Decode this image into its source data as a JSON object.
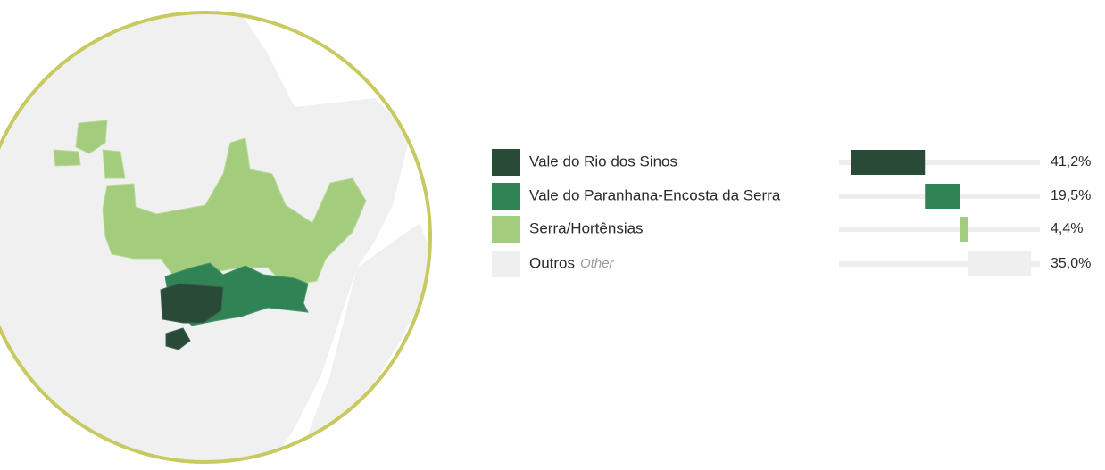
{
  "chart_data": {
    "type": "bar",
    "categories": [
      "Vale do Rio dos Sinos",
      "Vale do Paranhana-Encosta da Serra",
      "Serra/Hortênsias",
      "Outros"
    ],
    "category_notes": [
      null,
      null,
      null,
      "Other"
    ],
    "values": [
      41.2,
      19.5,
      4.4,
      35.0
    ],
    "value_labels": [
      "41,2%",
      "19,5%",
      "4,4%",
      "35,0%"
    ],
    "colors": [
      "#284a37",
      "#2f8355",
      "#a3cc7c",
      "#efefef"
    ],
    "xlim": [
      0,
      100
    ],
    "stacked": true
  }
}
